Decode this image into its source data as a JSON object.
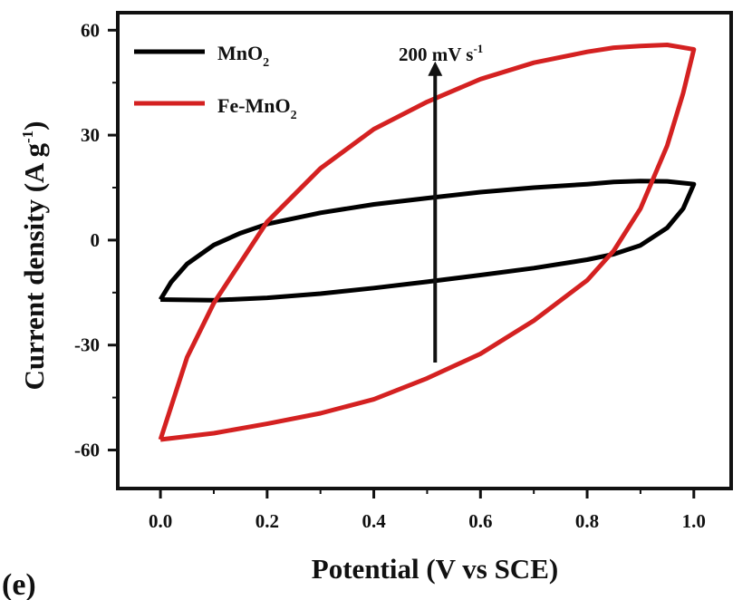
{
  "panel_label": "(e)",
  "chart_data": {
    "type": "line",
    "title": "",
    "xlabel": "Potential (V vs SCE)",
    "ylabel": {
      "main": "Current density (A g",
      "sup": "-1",
      "close": ")"
    },
    "xlim": [
      -0.08,
      1.07
    ],
    "ylim": [
      -71,
      65
    ],
    "xticks": [
      0.0,
      0.2,
      0.4,
      0.6,
      0.8,
      1.0
    ],
    "xtick_labels": [
      "0.0",
      "0.2",
      "0.4",
      "0.6",
      "0.8",
      "1.0"
    ],
    "yticks": [
      -60,
      -30,
      0,
      30,
      60
    ],
    "ytick_labels": [
      "-60",
      "-30",
      "0",
      "30",
      "60"
    ],
    "grid": false,
    "legend_position": "top-left",
    "annotation": {
      "main": "200 mV s",
      "sup": "-1",
      "arrow_x": 0.515,
      "arrow_from": -35,
      "arrow_to": 49
    },
    "series": [
      {
        "name": "MnO2",
        "legend": {
          "base": "MnO",
          "sub": "2"
        },
        "color": "#000000",
        "points": [
          [
            0.0,
            -17.0
          ],
          [
            0.1,
            -17.2
          ],
          [
            0.2,
            -16.5
          ],
          [
            0.3,
            -15.3
          ],
          [
            0.4,
            -13.7
          ],
          [
            0.5,
            -11.9
          ],
          [
            0.6,
            -10.0
          ],
          [
            0.7,
            -8.0
          ],
          [
            0.8,
            -5.6
          ],
          [
            0.85,
            -4.0
          ],
          [
            0.9,
            -1.5
          ],
          [
            0.95,
            3.5
          ],
          [
            0.98,
            9.0
          ],
          [
            1.0,
            16.0
          ],
          [
            0.95,
            16.8
          ],
          [
            0.9,
            16.9
          ],
          [
            0.85,
            16.6
          ],
          [
            0.8,
            16.0
          ],
          [
            0.7,
            15.0
          ],
          [
            0.6,
            13.7
          ],
          [
            0.5,
            12.0
          ],
          [
            0.4,
            10.2
          ],
          [
            0.3,
            7.8
          ],
          [
            0.2,
            4.6
          ],
          [
            0.15,
            2.0
          ],
          [
            0.1,
            -1.4
          ],
          [
            0.05,
            -6.8
          ],
          [
            0.02,
            -12.0
          ],
          [
            0.0,
            -17.0
          ]
        ]
      },
      {
        "name": "Fe-MnO2",
        "legend": {
          "base": "Fe-MnO",
          "sub": "2"
        },
        "color": "#d42121",
        "points": [
          [
            0.0,
            -57.0
          ],
          [
            0.1,
            -55.2
          ],
          [
            0.2,
            -52.5
          ],
          [
            0.3,
            -49.5
          ],
          [
            0.4,
            -45.5
          ],
          [
            0.5,
            -39.5
          ],
          [
            0.6,
            -32.5
          ],
          [
            0.7,
            -23.0
          ],
          [
            0.8,
            -11.5
          ],
          [
            0.85,
            -3.0
          ],
          [
            0.9,
            9.0
          ],
          [
            0.95,
            27.0
          ],
          [
            0.98,
            42.0
          ],
          [
            1.0,
            54.5
          ],
          [
            0.95,
            55.8
          ],
          [
            0.9,
            55.5
          ],
          [
            0.85,
            55.0
          ],
          [
            0.8,
            53.8
          ],
          [
            0.7,
            50.7
          ],
          [
            0.6,
            46.0
          ],
          [
            0.5,
            39.5
          ],
          [
            0.4,
            31.7
          ],
          [
            0.3,
            20.5
          ],
          [
            0.2,
            5.2
          ],
          [
            0.1,
            -18.0
          ],
          [
            0.05,
            -33.5
          ],
          [
            0.0,
            -57.0
          ]
        ]
      }
    ]
  }
}
